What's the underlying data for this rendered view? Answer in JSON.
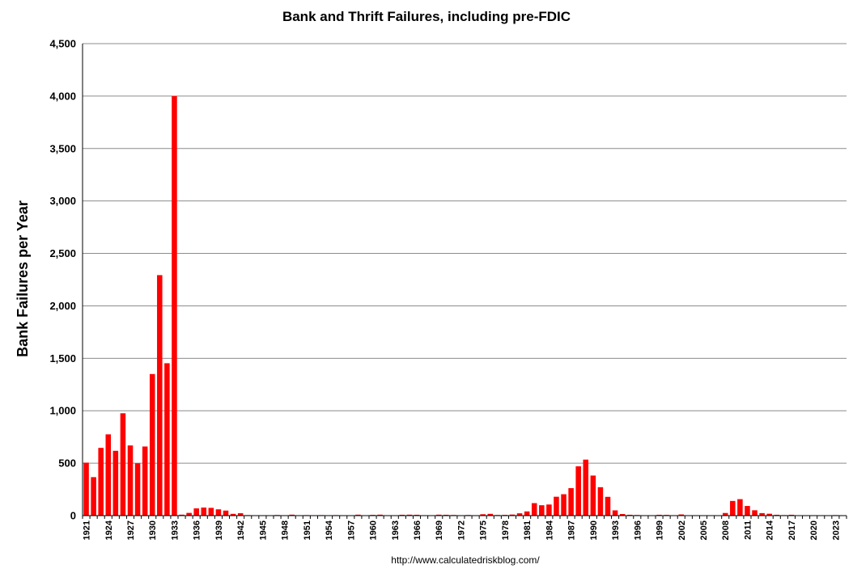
{
  "chart_data": {
    "type": "bar",
    "title": "Bank and Thrift Failures, including pre-FDIC",
    "xlabel": "",
    "ylabel": "Bank Failures per Year",
    "ylim": [
      0,
      4500
    ],
    "yticks": [
      0,
      500,
      1000,
      1500,
      2000,
      2500,
      3000,
      3500,
      4000,
      4500
    ],
    "ytick_labels": [
      "0",
      "500",
      "1,000",
      "1,500",
      "2,000",
      "2,500",
      "3,000",
      "3,500",
      "4,000",
      "4,500"
    ],
    "grid": true,
    "legend": "none",
    "bar_color": "#ff0000",
    "source": "http://www.calculatedriskblog.com/",
    "xtick_labels": [
      "1921",
      "1924",
      "1927",
      "1930",
      "1933",
      "1936",
      "1939",
      "1942",
      "1945",
      "1948",
      "1951",
      "1954",
      "1957",
      "1960",
      "1963",
      "1966",
      "1969",
      "1972",
      "1975",
      "1978",
      "1981",
      "1984",
      "1987",
      "1990",
      "1993",
      "1996",
      "1999",
      "2002",
      "2005",
      "2008",
      "2011",
      "2014",
      "2017",
      "2020",
      "2023"
    ],
    "categories": [
      "1921",
      "1922",
      "1923",
      "1924",
      "1925",
      "1926",
      "1927",
      "1928",
      "1929",
      "1930",
      "1931",
      "1932",
      "1933",
      "1934",
      "1935",
      "1936",
      "1937",
      "1938",
      "1939",
      "1940",
      "1941",
      "1942",
      "1943",
      "1944",
      "1945",
      "1946",
      "1947",
      "1948",
      "1949",
      "1950",
      "1951",
      "1952",
      "1953",
      "1954",
      "1955",
      "1956",
      "1957",
      "1958",
      "1959",
      "1960",
      "1961",
      "1962",
      "1963",
      "1964",
      "1965",
      "1966",
      "1967",
      "1968",
      "1969",
      "1970",
      "1971",
      "1972",
      "1973",
      "1974",
      "1975",
      "1976",
      "1977",
      "1978",
      "1979",
      "1980",
      "1981",
      "1982",
      "1983",
      "1984",
      "1985",
      "1986",
      "1987",
      "1988",
      "1989",
      "1990",
      "1991",
      "1992",
      "1993",
      "1994",
      "1995",
      "1996",
      "1997",
      "1998",
      "1999",
      "2000",
      "2001",
      "2002",
      "2003",
      "2004",
      "2005",
      "2006",
      "2007",
      "2008",
      "2009",
      "2010",
      "2011",
      "2012",
      "2013",
      "2014",
      "2015",
      "2016",
      "2017",
      "2018",
      "2019",
      "2020",
      "2021",
      "2022",
      "2023",
      "2024"
    ],
    "values": [
      505,
      367,
      646,
      775,
      618,
      976,
      669,
      499,
      659,
      1350,
      2293,
      1453,
      4000,
      9,
      26,
      69,
      77,
      74,
      60,
      48,
      17,
      23,
      5,
      2,
      1,
      2,
      6,
      3,
      9,
      4,
      5,
      4,
      5,
      4,
      5,
      3,
      3,
      9,
      3,
      7,
      9,
      3,
      2,
      8,
      9,
      8,
      4,
      3,
      9,
      8,
      6,
      1,
      6,
      4,
      13,
      17,
      6,
      7,
      10,
      22,
      40,
      119,
      99,
      106,
      180,
      204,
      262,
      470,
      534,
      382,
      271,
      179,
      50,
      15,
      8,
      6,
      1,
      3,
      8,
      7,
      4,
      11,
      3,
      4,
      0,
      0,
      3,
      25,
      140,
      157,
      92,
      51,
      24,
      18,
      8,
      5,
      8,
      0,
      4,
      4,
      0,
      0,
      5,
      2
    ]
  }
}
